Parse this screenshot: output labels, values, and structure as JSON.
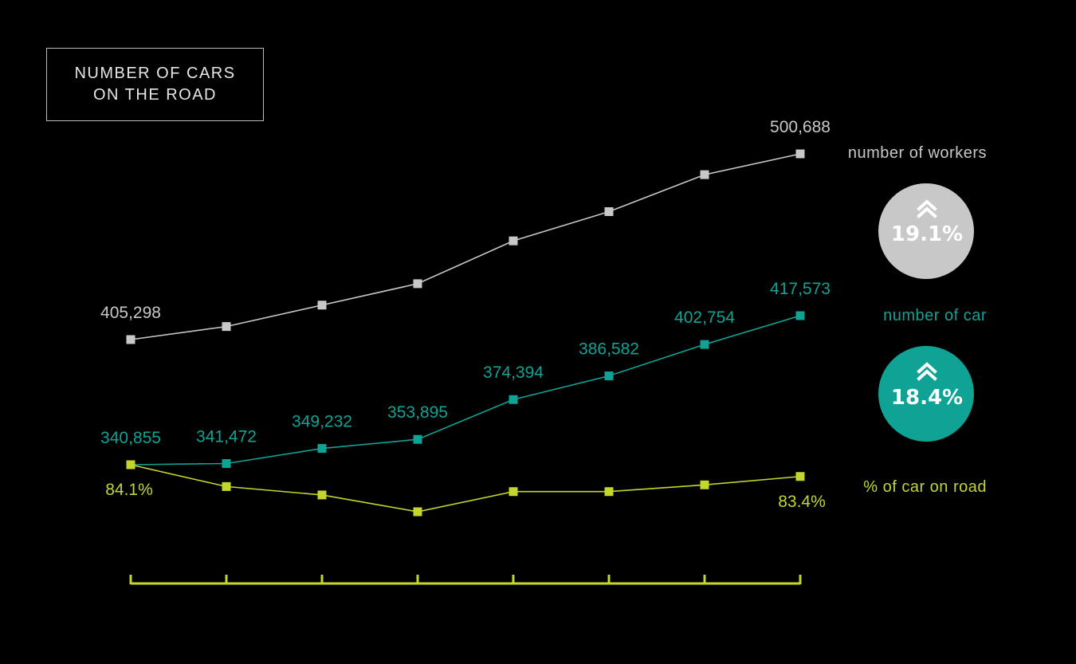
{
  "title_lines": [
    "NUMBER OF CARS",
    "ON THE ROAD"
  ],
  "colors": {
    "workers": "#c8c8c8",
    "cars": "#0fa396",
    "pct": "#c4d62c",
    "bg": "#000000"
  },
  "badges": [
    {
      "text": "19.1%",
      "icon": "double-chevron-up-icon",
      "color": "#c8c8c8"
    },
    {
      "text": "18.4%",
      "icon": "double-chevron-up-icon",
      "color": "#0fa396"
    }
  ],
  "chart_data": {
    "type": "line",
    "title": "NUMBER OF CARS ON THE ROAD",
    "x_points": 8,
    "xlabel": "",
    "ylabel": "",
    "series": [
      {
        "name": "number of workers",
        "values": [
          405298,
          412000,
          423000,
          434000,
          456000,
          471000,
          490000,
          500688
        ],
        "labels": [
          "405,298",
          "",
          "",
          "",
          "",
          "",
          "",
          "500,688"
        ]
      },
      {
        "name": "number of car",
        "values": [
          340855,
          341472,
          349232,
          353895,
          374394,
          386582,
          402754,
          417573
        ],
        "labels": [
          "340,855",
          "341,472",
          "349,232",
          "353,895",
          "374,394",
          "386,582",
          "402,754",
          "417,573"
        ]
      },
      {
        "name": "% of car on road",
        "values": [
          84.1,
          82.8,
          82.3,
          81.3,
          82.5,
          82.5,
          82.9,
          83.4
        ],
        "labels": [
          "84.1%",
          "",
          "",
          "",
          "",
          "",
          "",
          "83.4%"
        ]
      }
    ]
  }
}
